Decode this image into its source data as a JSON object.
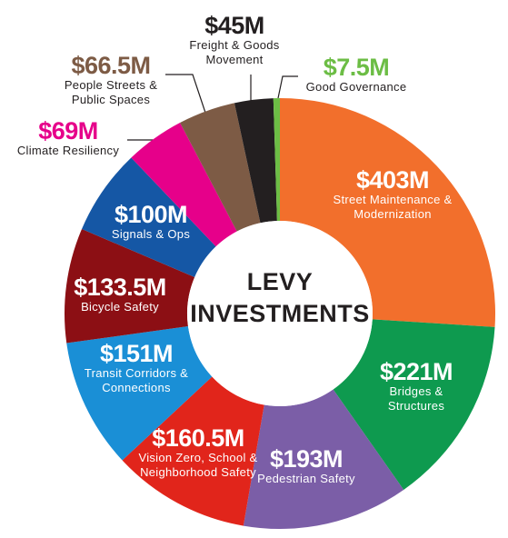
{
  "chart_data": {
    "type": "pie",
    "donut": true,
    "center_lines": [
      "LEVY",
      "INVESTMENTS"
    ],
    "categories": [
      "Street Maintenance & Modernization",
      "Bridges & Structures",
      "Pedestrian Safety",
      "Vision Zero, School & Neighborhood Safety",
      "Transit Corridors & Connections",
      "Bicycle Safety",
      "Signals & Ops",
      "Climate Resiliency",
      "People Streets & Public Spaces",
      "Freight & Goods Movement",
      "Good Governance"
    ],
    "values": [
      403,
      221,
      193,
      160.5,
      151,
      133.5,
      100,
      69,
      66.5,
      45,
      7.5
    ],
    "value_labels": [
      "$403M",
      "$221M",
      "$193M",
      "$160.5M",
      "$151M",
      "$133.5M",
      "$100M",
      "$69M",
      "$66.5M",
      "$45M",
      "$7.5M"
    ],
    "colors": [
      "#f26f2c",
      "#0e9a4f",
      "#7b5ea7",
      "#e1251b",
      "#1a8fd6",
      "#8c0f14",
      "#1557a5",
      "#e6008a",
      "#7d5b45",
      "#231f20",
      "#6cbd45"
    ]
  }
}
